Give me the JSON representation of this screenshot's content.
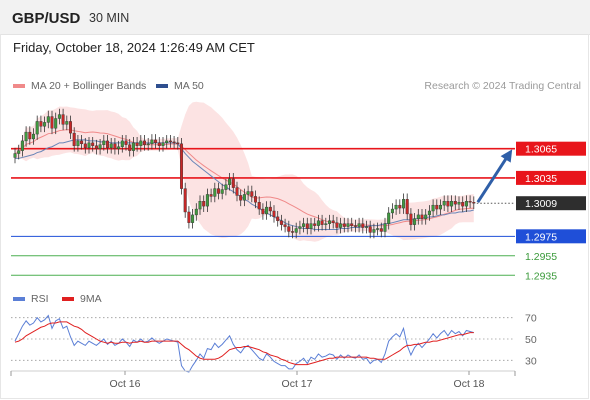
{
  "header": {
    "pair": "GBP/USD",
    "timeframe": "30 MIN"
  },
  "datetime": "Friday, October 18, 2024 1:26:49 AM CET",
  "legend": {
    "ma20": {
      "label": "MA 20 + Bollinger Bands",
      "color": "#f08a8a"
    },
    "ma50": {
      "label": "MA 50",
      "color": "#2f4f8f"
    }
  },
  "credit": "Research © 2024 Trading Central",
  "rsi_legend": {
    "rsi": {
      "label": "RSI",
      "color": "#5b7fd6"
    },
    "ma": {
      "label": "9MA",
      "color": "#e02020"
    }
  },
  "chart_data": [
    {
      "type": "candlestick",
      "ylim": [
        1.2925,
        1.3115
      ],
      "x_ticks": [
        "Oct 16",
        "Oct 17",
        "Oct 18"
      ],
      "current_price": "1.3009",
      "levels": [
        {
          "value": 1.3065,
          "label": "1.3065",
          "kind": "resistance",
          "color": "#e8151b"
        },
        {
          "value": 1.3035,
          "label": "1.3035",
          "kind": "resistance",
          "color": "#e8151b"
        },
        {
          "value": 1.2975,
          "label": "1.2975",
          "kind": "pivot",
          "color": "#1f4fd8"
        },
        {
          "value": 1.2955,
          "label": "1.2955",
          "kind": "support",
          "color": "#4caf50"
        },
        {
          "value": 1.2935,
          "label": "1.2935",
          "kind": "support",
          "color": "#4caf50"
        }
      ],
      "close": [
        1.306,
        1.3063,
        1.3073,
        1.3082,
        1.3075,
        1.308,
        1.3093,
        1.3088,
        1.3092,
        1.3098,
        1.3086,
        1.3096,
        1.31,
        1.309,
        1.3093,
        1.3081,
        1.3068,
        1.3073,
        1.307,
        1.3066,
        1.3071,
        1.3068,
        1.3065,
        1.3069,
        1.3073,
        1.3066,
        1.307,
        1.3065,
        1.3067,
        1.3073,
        1.3069,
        1.3063,
        1.3071,
        1.3068,
        1.3073,
        1.3069,
        1.307,
        1.3074,
        1.3071,
        1.3068,
        1.3071,
        1.3073,
        1.3072,
        1.3071,
        1.307,
        1.3024,
        1.3,
        1.2989,
        1.2997,
        1.3003,
        1.3011,
        1.3006,
        1.3018,
        1.3016,
        1.3024,
        1.3019,
        1.3023,
        1.3028,
        1.3034,
        1.3025,
        1.3017,
        1.3012,
        1.3018,
        1.3021,
        1.3016,
        1.301,
        1.3003,
        1.2998,
        1.3005,
        1.3001,
        1.2995,
        1.2991,
        1.2987,
        1.2985,
        1.298,
        1.2979,
        1.2983,
        1.2985,
        1.2988,
        1.2983,
        1.2988,
        1.2986,
        1.2991,
        1.2987,
        1.2988,
        1.2991,
        1.2989,
        1.2984,
        1.2988,
        1.2985,
        1.2988,
        1.2986,
        1.2985,
        1.2988,
        1.2984,
        1.2985,
        1.2979,
        1.2982,
        1.2983,
        1.298,
        1.2988,
        1.2999,
        1.3003,
        1.3007,
        1.3004,
        1.3013,
        1.2998,
        1.2987,
        1.2993,
        1.2997,
        1.2993,
        1.2997,
        1.3001,
        1.3007,
        1.3003,
        1.3007,
        1.3011,
        1.3006,
        1.3011,
        1.3008,
        1.301,
        1.3006,
        1.3011,
        1.301,
        1.3009
      ],
      "ma50": [
        1.3055,
        1.3055,
        1.3056,
        1.3057,
        1.3058,
        1.3059,
        1.3061,
        1.3062,
        1.3064,
        1.3066,
        1.3067,
        1.3069,
        1.3071,
        1.3071,
        1.3072,
        1.3073,
        1.3074,
        1.3074,
        1.3074,
        1.3074,
        1.3073,
        1.3073,
        1.3073,
        1.3072,
        1.3072,
        1.3072,
        1.3071,
        1.3071,
        1.3071,
        1.3071,
        1.3071,
        1.3071,
        1.3071,
        1.3071,
        1.3071,
        1.3071,
        1.3071,
        1.3071,
        1.3071,
        1.3071,
        1.3071,
        1.3071,
        1.3071,
        1.3071,
        1.307,
        1.3065,
        1.306,
        1.3056,
        1.3052,
        1.3049,
        1.3046,
        1.3043,
        1.304,
        1.3037,
        1.3034,
        1.3031,
        1.3028,
        1.3026,
        1.3023,
        1.3021,
        1.3018,
        1.3016,
        1.3013,
        1.3011,
        1.3008,
        1.3006,
        1.3004,
        1.3001,
        1.2999,
        1.2997,
        1.2995,
        1.2993,
        1.2991,
        1.2989,
        1.2987,
        1.2986,
        1.2985,
        1.2984,
        1.2983,
        1.2983,
        1.2983,
        1.2982,
        1.2982,
        1.2982,
        1.2982,
        1.2982,
        1.2982,
        1.2982,
        1.2983,
        1.2983,
        1.2983,
        1.2984,
        1.2984,
        1.2984,
        1.2985,
        1.2985,
        1.2986,
        1.2986,
        1.2986,
        1.2987,
        1.2988,
        1.2988,
        1.2989,
        1.299,
        1.2991,
        1.2992,
        1.2992,
        1.2992,
        1.2993,
        1.2993,
        1.2994,
        1.2994,
        1.2995,
        1.2995,
        1.2996,
        1.2997,
        1.2997,
        1.2998,
        1.2999,
        1.2999,
        1.3,
        1.3,
        1.3001,
        1.3001,
        1.3002
      ],
      "forecast": {
        "from": 1.3009,
        "to": 1.3065
      }
    },
    {
      "type": "line",
      "ylim": [
        20,
        80
      ],
      "y_ticks": [
        70,
        50,
        30
      ],
      "series": [
        {
          "name": "RSI",
          "values": [
            48,
            55,
            62,
            67,
            63,
            65,
            70,
            66,
            68,
            72,
            60,
            67,
            69,
            60,
            62,
            52,
            44,
            48,
            46,
            44,
            48,
            46,
            44,
            47,
            50,
            45,
            48,
            44,
            46,
            50,
            47,
            43,
            49,
            47,
            50,
            47,
            48,
            51,
            48,
            46,
            48,
            50,
            49,
            48,
            47,
            25,
            20,
            19,
            25,
            30,
            36,
            32,
            41,
            40,
            46,
            42,
            45,
            49,
            53,
            45,
            40,
            37,
            42,
            44,
            40,
            36,
            32,
            30,
            36,
            33,
            29,
            27,
            25,
            25,
            22,
            22,
            27,
            29,
            32,
            27,
            33,
            31,
            36,
            33,
            34,
            36,
            35,
            31,
            35,
            32,
            35,
            33,
            32,
            35,
            31,
            32,
            27,
            30,
            31,
            28,
            36,
            48,
            52,
            55,
            52,
            60,
            44,
            35,
            42,
            46,
            42,
            46,
            50,
            55,
            51,
            55,
            58,
            53,
            58,
            55,
            57,
            53,
            58,
            57,
            56
          ]
        },
        {
          "name": "9MA",
          "values": [
            47,
            48,
            50,
            53,
            55,
            57,
            59,
            61,
            62,
            64,
            65,
            65,
            66,
            66,
            66,
            64,
            62,
            61,
            59,
            56,
            54,
            52,
            50,
            48,
            47,
            46,
            47,
            46,
            46,
            47,
            47,
            46,
            47,
            47,
            48,
            47,
            47,
            48,
            48,
            48,
            48,
            48,
            48,
            48,
            48,
            45,
            42,
            40,
            37,
            34,
            32,
            31,
            31,
            31,
            31,
            32,
            34,
            37,
            40,
            41,
            42,
            42,
            43,
            43,
            42,
            41,
            40,
            38,
            37,
            35,
            34,
            33,
            31,
            30,
            28,
            27,
            26,
            26,
            26,
            26,
            27,
            28,
            29,
            30,
            31,
            32,
            32,
            33,
            33,
            33,
            33,
            33,
            33,
            33,
            33,
            33,
            32,
            32,
            31,
            31,
            31,
            33,
            35,
            37,
            39,
            42,
            44,
            44,
            45,
            45,
            46,
            47,
            47,
            48,
            48,
            49,
            50,
            51,
            52,
            53,
            54,
            54,
            55,
            56,
            56
          ]
        }
      ]
    }
  ]
}
